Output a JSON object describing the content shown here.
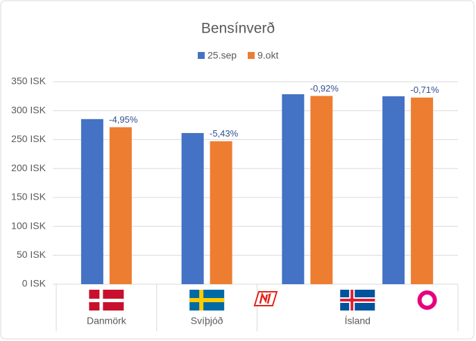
{
  "chart_data": {
    "type": "bar",
    "title": "Bensínverð",
    "categories": [
      null,
      null,
      null,
      null
    ],
    "x_groups": [
      {
        "label": "Danmörk",
        "size": 1
      },
      {
        "label": "Svíþjóð",
        "size": 1
      },
      {
        "label": "Ísland",
        "size": 2
      }
    ],
    "series": [
      {
        "name": "25.sep",
        "color": "#4472c4",
        "values": [
          285.5,
          261.4,
          328.5,
          325.0
        ]
      },
      {
        "name": "9.okt",
        "color": "#ed7d31",
        "values": [
          271.4,
          247.2,
          325.5,
          322.7
        ],
        "change_labels": [
          "-4,95%",
          "-5,43%",
          "-0,92%",
          "-0,71%"
        ]
      }
    ],
    "ylim": [
      0,
      350
    ],
    "yticks": [
      {
        "value": 0,
        "label": "0 ISK"
      },
      {
        "value": 50,
        "label": "50 ISK"
      },
      {
        "value": 100,
        "label": "100 ISK"
      },
      {
        "value": 150,
        "label": "150 ISK"
      },
      {
        "value": 200,
        "label": "200 ISK"
      },
      {
        "value": 250,
        "label": "250 ISK"
      },
      {
        "value": 300,
        "label": "300 ISK"
      },
      {
        "value": 350,
        "label": "350 ISK"
      }
    ],
    "grid": true,
    "legend": "top"
  }
}
